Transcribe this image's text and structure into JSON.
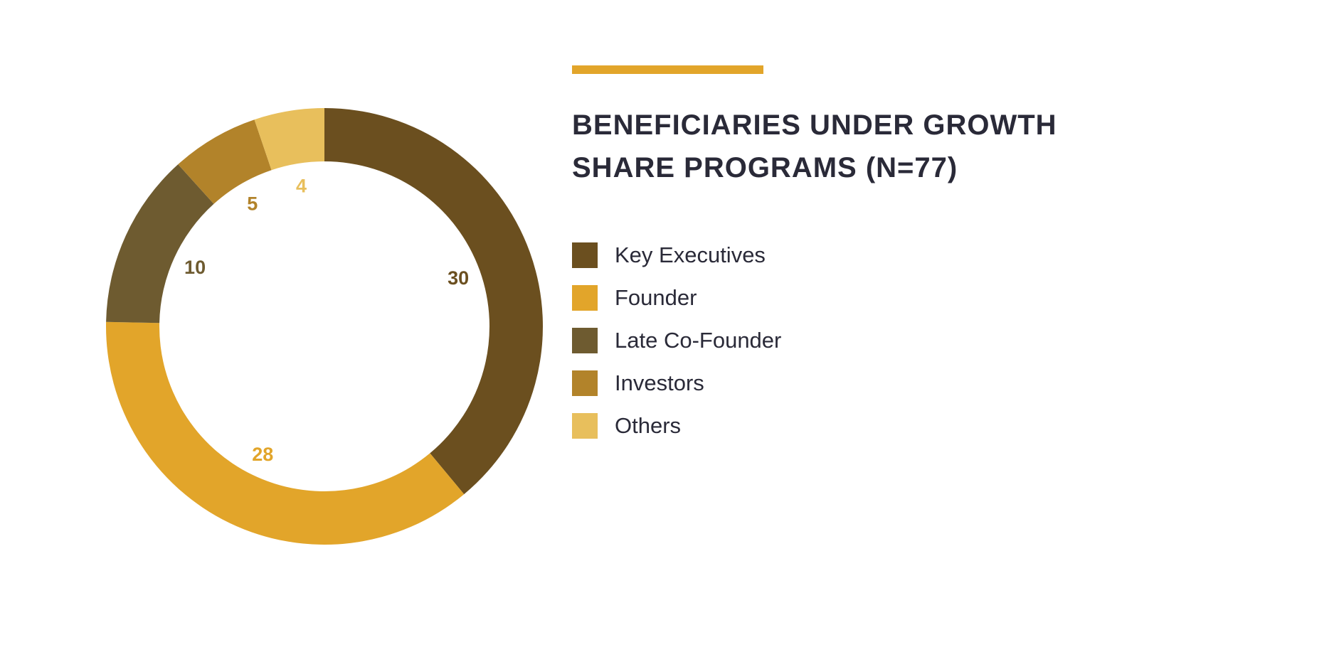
{
  "chart_data": {
    "type": "pie",
    "variant": "donut",
    "title": "BENEFICIARIES UNDER GROWTH SHARE PROGRAMS (N=77)",
    "title_lines": [
      "BENEFICIARIES UNDER GROWTH",
      "SHARE PROGRAMS (N=77)"
    ],
    "legend_position": "right",
    "slices": [
      {
        "label": "Key Executives",
        "value": 30,
        "color": "#6B4F1F",
        "label_color": "#6B4F1F"
      },
      {
        "label": "Founder",
        "value": 28,
        "color": "#E2A52A",
        "label_color": "#E2A52A"
      },
      {
        "label": "Late Co-Founder",
        "value": 10,
        "color": "#6E5B30",
        "label_color": "#6E5B30"
      },
      {
        "label": "Investors",
        "value": 5,
        "color": "#B2832A",
        "label_color": "#B2832A"
      },
      {
        "label": "Others",
        "value": 4,
        "color": "#E8BF5C",
        "label_color": "#E8BF5C"
      }
    ]
  },
  "colors": {
    "accent": "#E2A52A",
    "text": "#2A2A38"
  }
}
